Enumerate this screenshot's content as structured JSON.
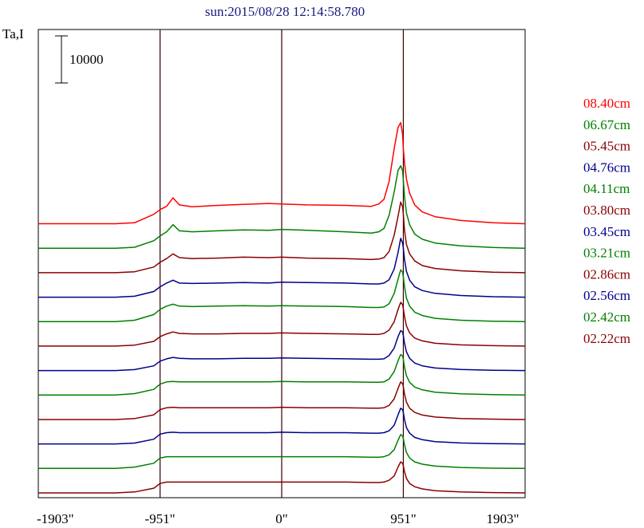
{
  "chart_data": {
    "type": "line",
    "title": "sun:2015/08/28 12:14:58.780",
    "ylabel": "Ta,I",
    "scale_bar_label": "10000",
    "scale_bar_value": 10000,
    "xlim": [
      -1903,
      1903
    ],
    "x_ticks": [
      {
        "value": -1903,
        "label": "-1903\""
      },
      {
        "value": -951,
        "label": "-951\""
      },
      {
        "value": 0,
        "label": "0\""
      },
      {
        "value": 951,
        "label": "951\""
      },
      {
        "value": 1903,
        "label": "1903\""
      }
    ],
    "vertical_lines": [
      -951,
      0,
      951
    ],
    "stack_offset": 5200,
    "profile_x": [
      -1903,
      -1300,
      -1150,
      -1000,
      -951,
      -900,
      -850,
      -800,
      -700,
      -500,
      -300,
      -100,
      0,
      200,
      500,
      700,
      760,
      800,
      840,
      880,
      910,
      930,
      945,
      951,
      960,
      975,
      1000,
      1040,
      1100,
      1200,
      1400,
      1650,
      1903
    ],
    "series": [
      {
        "name": "08.40cm",
        "color": "#ff0000",
        "values": [
          0,
          0,
          200,
          2000,
          3000,
          3700,
          5500,
          4000,
          3600,
          3900,
          4100,
          4300,
          4200,
          4000,
          3900,
          3700,
          4200,
          5200,
          9000,
          16000,
          20500,
          21500,
          19000,
          16000,
          13000,
          9500,
          6500,
          4000,
          2500,
          1500,
          700,
          200,
          0
        ]
      },
      {
        "name": "06.67cm",
        "color": "#008000",
        "values": [
          0,
          0,
          200,
          1600,
          2600,
          3500,
          5000,
          3700,
          3500,
          3700,
          3900,
          3800,
          4000,
          3800,
          3500,
          3200,
          3500,
          4200,
          7000,
          12000,
          16500,
          17500,
          16500,
          14500,
          11000,
          7500,
          5000,
          3000,
          1900,
          1100,
          500,
          150,
          0
        ]
      },
      {
        "name": "05.45cm",
        "color": "#8b0000",
        "values": [
          0,
          0,
          200,
          1200,
          2200,
          3000,
          4000,
          3200,
          3000,
          3100,
          3300,
          3200,
          3300,
          3100,
          3000,
          2800,
          2900,
          3200,
          4500,
          8000,
          12000,
          15000,
          14000,
          12500,
          9000,
          6000,
          4000,
          2500,
          1500,
          900,
          400,
          100,
          0
        ]
      },
      {
        "name": "04.76cm",
        "color": "#00008b",
        "values": [
          0,
          0,
          200,
          1200,
          2200,
          3000,
          3600,
          3000,
          2900,
          3000,
          3100,
          3000,
          3200,
          3100,
          3000,
          2800,
          2800,
          3000,
          3700,
          6000,
          9500,
          12500,
          11500,
          10500,
          8000,
          5500,
          3600,
          2200,
          1400,
          800,
          350,
          100,
          0
        ]
      },
      {
        "name": "04.11cm",
        "color": "#008000",
        "values": [
          0,
          0,
          300,
          1500,
          2600,
          3300,
          3700,
          3300,
          3200,
          3300,
          3400,
          3300,
          3400,
          3300,
          3200,
          3000,
          3000,
          3100,
          3800,
          6000,
          9000,
          11000,
          10500,
          9500,
          7500,
          5000,
          3300,
          2000,
          1300,
          700,
          300,
          100,
          0
        ]
      },
      {
        "name": "03.80cm",
        "color": "#8b0000",
        "values": [
          0,
          0,
          200,
          1000,
          2000,
          2600,
          3000,
          2700,
          2600,
          2600,
          2700,
          2700,
          2800,
          2700,
          2600,
          2500,
          2500,
          2700,
          3400,
          5200,
          7800,
          9300,
          8800,
          8000,
          6300,
          4300,
          2800,
          1700,
          1100,
          600,
          250,
          80,
          0
        ]
      },
      {
        "name": "03.45cm",
        "color": "#00008b",
        "values": [
          0,
          0,
          200,
          1000,
          2000,
          2500,
          2800,
          2600,
          2500,
          2500,
          2600,
          2600,
          2700,
          2600,
          2500,
          2400,
          2400,
          2500,
          3200,
          4800,
          7200,
          8500,
          8200,
          7500,
          5800,
          4000,
          2600,
          1600,
          1000,
          550,
          230,
          70,
          0
        ]
      },
      {
        "name": "03.21cm",
        "color": "#008000",
        "values": [
          0,
          0,
          300,
          1200,
          2300,
          2800,
          2900,
          2800,
          2800,
          2800,
          2800,
          2800,
          2900,
          2800,
          2800,
          2700,
          2700,
          2800,
          3400,
          5000,
          7300,
          8600,
          8300,
          7600,
          5900,
          4100,
          2700,
          1700,
          1100,
          600,
          250,
          80,
          0
        ]
      },
      {
        "name": "02.86cm",
        "color": "#8b0000",
        "values": [
          0,
          0,
          200,
          1000,
          2100,
          2500,
          2600,
          2500,
          2500,
          2500,
          2500,
          2500,
          2600,
          2500,
          2500,
          2400,
          2400,
          2500,
          3000,
          4400,
          6600,
          8000,
          7600,
          7000,
          5400,
          3700,
          2400,
          1500,
          950,
          520,
          220,
          70,
          0
        ]
      },
      {
        "name": "02.56cm",
        "color": "#00008b",
        "values": [
          0,
          0,
          200,
          1000,
          2100,
          2400,
          2500,
          2400,
          2400,
          2400,
          2400,
          2400,
          2500,
          2400,
          2400,
          2300,
          2300,
          2400,
          2800,
          4000,
          6200,
          7600,
          7300,
          6700,
          5200,
          3500,
          2300,
          1400,
          900,
          500,
          210,
          60,
          0
        ]
      },
      {
        "name": "02.42cm",
        "color": "#008000",
        "values": [
          0,
          0,
          300,
          1100,
          2200,
          2500,
          2500,
          2500,
          2500,
          2500,
          2500,
          2500,
          2500,
          2500,
          2500,
          2400,
          2400,
          2500,
          2900,
          4000,
          6000,
          7200,
          6900,
          6400,
          5000,
          3400,
          2200,
          1400,
          900,
          500,
          200,
          60,
          0
        ]
      },
      {
        "name": "02.22cm",
        "color": "#8b0000",
        "values": [
          0,
          0,
          200,
          1000,
          2000,
          2300,
          2300,
          2300,
          2300,
          2300,
          2300,
          2300,
          2300,
          2300,
          2300,
          2200,
          2200,
          2300,
          2700,
          3600,
          5500,
          6600,
          6300,
          5800,
          4500,
          3100,
          2000,
          1300,
          850,
          480,
          200,
          60,
          0
        ]
      }
    ]
  }
}
